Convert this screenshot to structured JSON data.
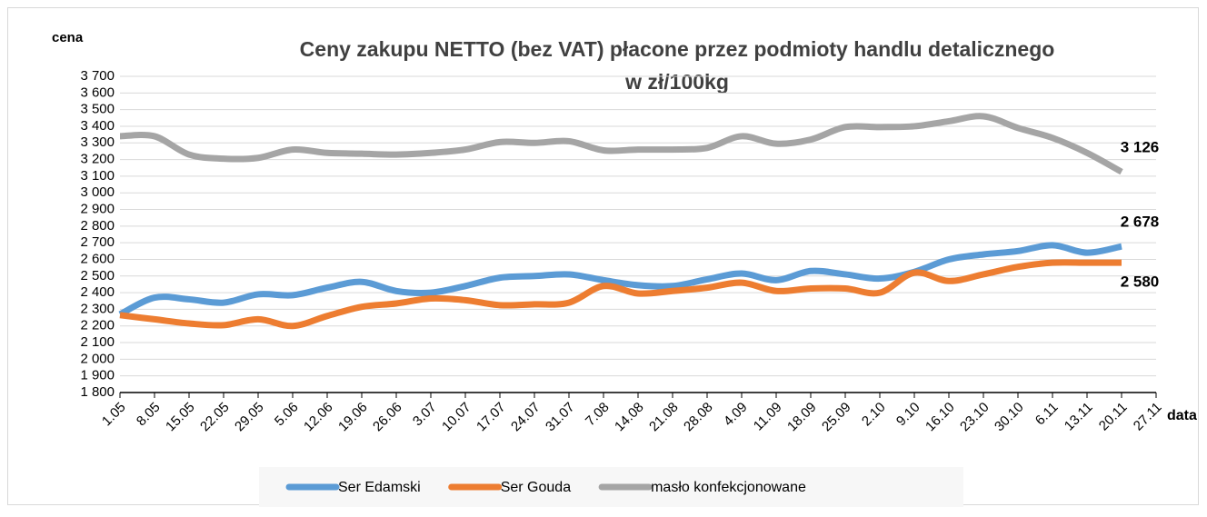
{
  "chart_data": {
    "type": "line",
    "title": "Ceny zakupu NETTO (bez VAT) płacone przez podmioty handlu detalicznego",
    "subtitle": "w zł/100kg",
    "y_label": "cena",
    "x_label": "data",
    "categories": [
      "1.05",
      "8.05",
      "15.05",
      "22.05",
      "29.05",
      "5.06",
      "12.06",
      "19.06",
      "26.06",
      "3.07",
      "10.07",
      "17.07",
      "24.07",
      "31.07",
      "7.08",
      "14.08",
      "21.08",
      "28.08",
      "4.09",
      "11.09",
      "18.09",
      "25.09",
      "2.10",
      "9.10",
      "16.10",
      "23.10",
      "30.10",
      "6.11",
      "13.11",
      "20.11",
      "27.11"
    ],
    "series": [
      {
        "name": "Ser Edamski",
        "color": "#5b9bd5",
        "values": [
          2270,
          2370,
          2360,
          2340,
          2390,
          2385,
          2430,
          2465,
          2410,
          2400,
          2440,
          2490,
          2500,
          2510,
          2475,
          2445,
          2440,
          2480,
          2515,
          2475,
          2530,
          2510,
          2485,
          2525,
          2600,
          2630,
          2650,
          2685,
          2640,
          2678,
          null
        ],
        "value_labels": [
          null,
          null,
          null,
          null,
          null,
          null,
          null,
          null,
          null,
          null,
          null,
          null,
          null,
          null,
          null,
          null,
          null,
          null,
          null,
          null,
          null,
          null,
          null,
          null,
          null,
          null,
          null,
          null,
          null,
          "2 678",
          null
        ]
      },
      {
        "name": "Ser Gouda",
        "color": "#ed7d31",
        "values": [
          2265,
          2240,
          2215,
          2205,
          2240,
          2200,
          2260,
          2315,
          2335,
          2365,
          2355,
          2325,
          2330,
          2340,
          2440,
          2395,
          2410,
          2430,
          2460,
          2410,
          2425,
          2425,
          2400,
          2520,
          2470,
          2510,
          2555,
          2580,
          2580,
          2580,
          null
        ],
        "value_labels": [
          null,
          null,
          null,
          null,
          null,
          null,
          null,
          null,
          null,
          null,
          null,
          null,
          null,
          null,
          null,
          null,
          null,
          null,
          null,
          null,
          null,
          null,
          null,
          null,
          null,
          null,
          null,
          null,
          null,
          "2 580",
          null
        ]
      },
      {
        "name": "masło konfekcjonowane",
        "color": "#a5a5a5",
        "values": [
          3340,
          3340,
          3230,
          3205,
          3210,
          3260,
          3240,
          3235,
          3230,
          3240,
          3260,
          3305,
          3300,
          3310,
          3255,
          3260,
          3260,
          3270,
          3340,
          3295,
          3320,
          3395,
          3395,
          3400,
          3430,
          3460,
          3390,
          3330,
          3240,
          3126,
          null
        ],
        "value_labels": [
          null,
          null,
          null,
          null,
          null,
          null,
          null,
          null,
          null,
          null,
          null,
          null,
          null,
          null,
          null,
          null,
          null,
          null,
          null,
          null,
          null,
          null,
          null,
          null,
          null,
          null,
          null,
          null,
          null,
          "3 126",
          null
        ]
      }
    ],
    "ylim": [
      1800,
      3700
    ],
    "yticks": [
      {
        "value": 1800,
        "label": "1 800"
      },
      {
        "value": 1900,
        "label": "1 900"
      },
      {
        "value": 2000,
        "label": "2 000"
      },
      {
        "value": 2100,
        "label": "2 100"
      },
      {
        "value": 2200,
        "label": "2 200"
      },
      {
        "value": 2300,
        "label": "2 300"
      },
      {
        "value": 2400,
        "label": "2 400"
      },
      {
        "value": 2500,
        "label": "2 500"
      },
      {
        "value": 2600,
        "label": "2 600"
      },
      {
        "value": 2700,
        "label": "2 700"
      },
      {
        "value": 2800,
        "label": "2 800"
      },
      {
        "value": 2900,
        "label": "2 900"
      },
      {
        "value": 3000,
        "label": "3 000"
      },
      {
        "value": 3100,
        "label": "3 100"
      },
      {
        "value": 3200,
        "label": "3 200"
      },
      {
        "value": 3300,
        "label": "3 300"
      },
      {
        "value": 3400,
        "label": "3 400"
      },
      {
        "value": 3500,
        "label": "3 500"
      },
      {
        "value": 3600,
        "label": "3 600"
      },
      {
        "value": 3700,
        "label": "3 700"
      }
    ],
    "grid": true,
    "smooth": true,
    "legend": "bottom"
  }
}
